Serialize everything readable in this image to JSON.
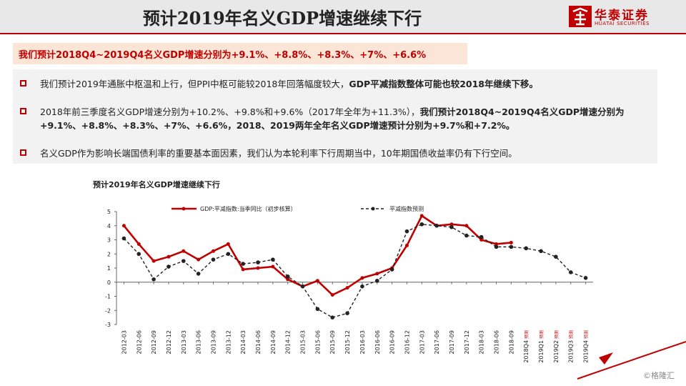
{
  "header": {
    "title": "预计2019年名义GDP增速继续下行"
  },
  "logo": {
    "cn": "华泰证券",
    "en": "HUATAI SECURITIES"
  },
  "highlight": {
    "text": "我们预计2018Q4~2019Q4名义GDP增速分别为+9.1%、+8.8%、+8.3%、+7%、+6.6%"
  },
  "bullets": [
    {
      "normal": "我们预计2019年通胀中枢温和上行，但PPI中枢可能较2018年回落幅度较大，",
      "bold": "GDP平减指数整体可能也较2018年继续下移。",
      "tail": ""
    },
    {
      "normal": "2018年前三季度名义GDP增速分别为+10.2%、+9.8%和+9.6%（2017年全年为+11.3%），",
      "bold": "我们预计2018Q4~2019Q4名义GDP增速分别为+9.1%、+8.8%、+8.3%、+7%、+6.6%，2018、2019两年全年名义GDP增速预计分别为+9.7%和+7.2%。",
      "tail": ""
    },
    {
      "normal": "名义GDP作为影响长端国债利率的重要基本面因素，我们认为本轮利率下行周期当中，10年期国债收益率仍有下行空间。",
      "bold": "",
      "tail": ""
    }
  ],
  "watermark": "©格隆汇",
  "colors": {
    "accent": "#c00000",
    "series1": "#c00000",
    "series2": "#222222"
  },
  "chart_data": {
    "type": "line",
    "title": "预计2019年名义GDP增速继续下行",
    "xlabel": "",
    "ylabel": "",
    "ylim": [
      -3,
      5
    ],
    "yticks": [
      -3,
      -2,
      -1,
      0,
      1,
      2,
      3,
      4,
      5
    ],
    "grid": false,
    "legend": "top",
    "categories": [
      "2012-03",
      "2012-06",
      "2012-09",
      "2012-12",
      "2013-03",
      "2013-06",
      "2013-09",
      "2013-12",
      "2014-03",
      "2014-06",
      "2014-09",
      "2014-12",
      "2015-03",
      "2015-06",
      "2015-09",
      "2015-12",
      "2016-03",
      "2016-06",
      "2016-09",
      "2016-12",
      "2017-03",
      "2017-06",
      "2017-09",
      "2017-12",
      "2018-03",
      "2018-06",
      "2018-09",
      "2018Q4 预测",
      "2019Q1 预测",
      "2019Q2 预测",
      "2019Q3 预测",
      "2019Q4 预测"
    ],
    "series": [
      {
        "name": "GDP:平减指数:当季同比（初步核算）",
        "style": "solid",
        "color": "#c00000",
        "values": [
          4.0,
          2.7,
          1.5,
          1.8,
          2.2,
          1.6,
          2.2,
          2.7,
          0.9,
          1.0,
          1.1,
          0.2,
          -0.3,
          0.1,
          -0.9,
          -0.4,
          0.3,
          0.6,
          1.0,
          2.6,
          4.7,
          4.0,
          4.1,
          4.0,
          3.0,
          2.7,
          2.8,
          null,
          null,
          null,
          null,
          null
        ]
      },
      {
        "name": "平减指数预测",
        "style": "dashed",
        "color": "#222222",
        "values": [
          3.1,
          2.0,
          0.2,
          1.1,
          1.5,
          0.6,
          1.6,
          2.0,
          1.3,
          1.4,
          1.6,
          0.4,
          -0.3,
          -1.9,
          -2.5,
          -2.2,
          -0.3,
          0.1,
          0.9,
          3.6,
          4.1,
          4.0,
          3.9,
          3.3,
          3.2,
          2.5,
          2.5,
          2.4,
          2.2,
          1.8,
          0.7,
          0.3
        ]
      }
    ]
  }
}
